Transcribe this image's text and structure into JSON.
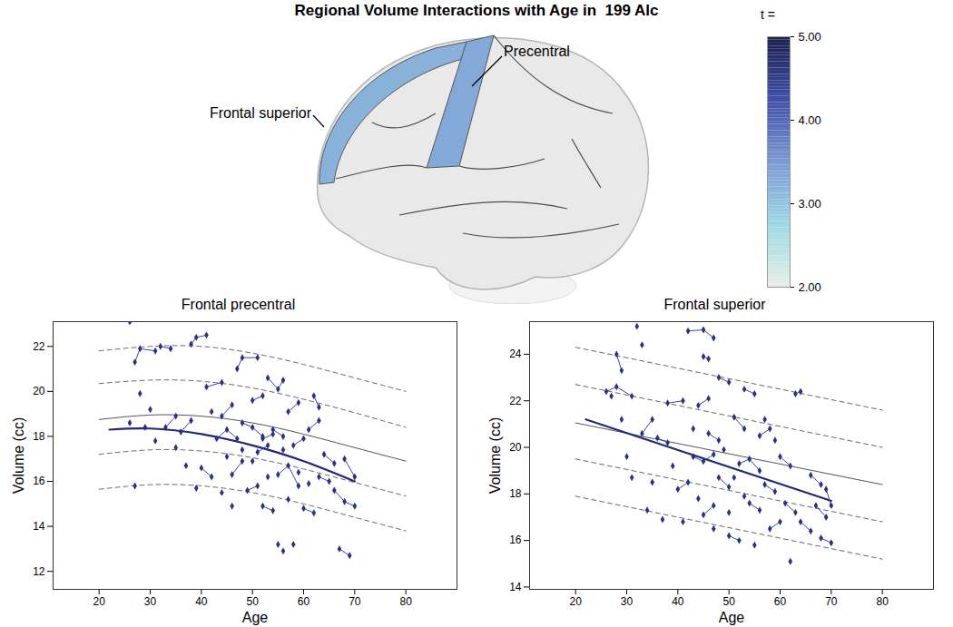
{
  "chart_data": [
    {
      "type": "brain_map",
      "title": "Regional Volume Interactions with Age in  199 Alc",
      "regions": [
        {
          "label": "Frontal superior",
          "t": 3.2
        },
        {
          "label": "Precentral",
          "t": 3.3
        }
      ],
      "colorbar": {
        "title": "t =",
        "range": [
          2,
          5
        ],
        "ticks": [
          {
            "value": 2,
            "label": "2.00"
          },
          {
            "value": 3,
            "label": "3.00"
          },
          {
            "value": 4,
            "label": "4.00"
          },
          {
            "value": 5,
            "label": "5.00"
          }
        ],
        "colors": [
          "#e6efe6",
          "#9ed8e4",
          "#7b98d4",
          "#3f4fa6",
          "#1b1f4e"
        ]
      }
    },
    {
      "type": "scatter",
      "title": "Frontal precentral",
      "x_label": "Age",
      "y_label": "Volume (cc)",
      "xlim": [
        11,
        90
      ],
      "xticks": [
        20,
        30,
        40,
        50,
        60,
        70,
        80
      ],
      "ylim": [
        11.2,
        23.1
      ],
      "yticks": [
        12,
        14,
        16,
        18,
        20,
        22
      ],
      "color": "#27308a",
      "marker": "diamond",
      "subjects": [
        [
          [
            26,
            23.1
          ]
        ],
        [
          [
            27,
            21.3
          ],
          [
            28,
            21.9
          ],
          [
            31,
            21.8
          ]
        ],
        [
          [
            32,
            22
          ],
          [
            34,
            21.9
          ]
        ],
        [
          [
            38,
            22.1
          ],
          [
            39,
            22.4
          ],
          [
            41,
            22.5
          ]
        ],
        [
          [
            26,
            18.6
          ]
        ],
        [
          [
            28,
            19.9
          ]
        ],
        [
          [
            29,
            18.4
          ]
        ],
        [
          [
            30,
            19.2
          ]
        ],
        [
          [
            31,
            17.8
          ]
        ],
        [
          [
            27,
            15.8
          ]
        ],
        [
          [
            33,
            18.4
          ],
          [
            35,
            18.9
          ]
        ],
        [
          [
            36,
            18.2
          ],
          [
            38,
            18.7
          ]
        ],
        [
          [
            37,
            16.7
          ]
        ],
        [
          [
            40,
            16.6
          ],
          [
            42,
            16.2
          ]
        ],
        [
          [
            41,
            20.2
          ],
          [
            44,
            20.4
          ]
        ],
        [
          [
            43,
            17.9
          ],
          [
            45,
            18.3
          ],
          [
            47,
            17.9
          ]
        ],
        [
          [
            44,
            18.9
          ],
          [
            46,
            19.4
          ]
        ],
        [
          [
            46,
            16.3
          ],
          [
            48,
            16.9
          ]
        ],
        [
          [
            47,
            21
          ],
          [
            48,
            21.5
          ],
          [
            51,
            21.5
          ]
        ],
        [
          [
            48,
            18.6
          ],
          [
            50,
            18.4
          ],
          [
            52,
            18
          ]
        ],
        [
          [
            49,
            15.6
          ],
          [
            51,
            15.8
          ]
        ],
        [
          [
            50,
            19.6
          ],
          [
            52,
            19.8
          ]
        ],
        [
          [
            51,
            17.3
          ],
          [
            53,
            17.6
          ]
        ],
        [
          [
            52,
            14.9
          ],
          [
            54,
            14.7
          ]
        ],
        [
          [
            53,
            20.6
          ],
          [
            55,
            20.1
          ],
          [
            56,
            20.5
          ]
        ],
        [
          [
            54,
            18.3
          ],
          [
            56,
            18
          ]
        ],
        [
          [
            55,
            16.3
          ],
          [
            57,
            16.7
          ],
          [
            59,
            15.8
          ]
        ],
        [
          [
            55,
            13.2
          ]
        ],
        [
          [
            56,
            12.9
          ]
        ],
        [
          [
            58,
            13.2
          ]
        ],
        [
          [
            57,
            19.1
          ],
          [
            59,
            19.5
          ]
        ],
        [
          [
            58,
            17.6
          ],
          [
            60,
            17.9
          ]
        ],
        [
          [
            60,
            14.8
          ],
          [
            62,
            14.6
          ]
        ],
        [
          [
            61,
            18.3
          ],
          [
            63,
            18.7
          ]
        ],
        [
          [
            62,
            19.8
          ],
          [
            63,
            19.3
          ]
        ],
        [
          [
            63,
            16.2
          ],
          [
            65,
            16
          ]
        ],
        [
          [
            64,
            17.2
          ],
          [
            66,
            16.8
          ]
        ],
        [
          [
            66,
            15.6
          ],
          [
            68,
            15.1
          ],
          [
            70,
            14.9
          ]
        ],
        [
          [
            67,
            13
          ],
          [
            69,
            12.7
          ]
        ],
        [
          [
            68,
            17
          ],
          [
            70,
            16.2
          ]
        ],
        [
          [
            45,
            17.1
          ]
        ],
        [
          [
            42,
            19.1
          ]
        ],
        [
          [
            35,
            17.5
          ]
        ],
        [
          [
            39,
            15.7
          ]
        ],
        [
          [
            50,
            16.9
          ]
        ],
        [
          [
            53,
            16.2
          ]
        ],
        [
          [
            57,
            15.2
          ]
        ],
        [
          [
            61,
            15.9
          ]
        ],
        [
          [
            46,
            14.9
          ]
        ],
        [
          [
            44,
            15.5
          ]
        ],
        [
          [
            52,
            17.9
          ],
          [
            54,
            18.1
          ]
        ],
        [
          [
            48,
            17.4
          ]
        ],
        [
          [
            56,
            17.4
          ]
        ],
        [
          [
            59,
            16.4
          ]
        ]
      ],
      "curves": [
        {
          "color": "#666666",
          "line_style": "dashed",
          "x": [
            20,
            30,
            40,
            50,
            60,
            70,
            80
          ],
          "values": [
            21.8,
            22.0,
            22.0,
            21.7,
            21.2,
            20.6,
            20.0
          ]
        },
        {
          "color": "#666666",
          "line_style": "dashed",
          "x": [
            20,
            30,
            40,
            50,
            60,
            70,
            80
          ],
          "values": [
            20.35,
            20.5,
            20.45,
            20.15,
            19.65,
            19.05,
            18.4
          ]
        },
        {
          "color": "#555555",
          "line_style": "solid",
          "x": [
            20,
            30,
            40,
            50,
            60,
            70,
            80
          ],
          "values": [
            18.75,
            18.95,
            18.9,
            18.6,
            18.1,
            17.5,
            16.9
          ]
        },
        {
          "color": "#666666",
          "line_style": "dashed",
          "x": [
            20,
            30,
            40,
            50,
            60,
            70,
            80
          ],
          "values": [
            17.2,
            17.4,
            17.35,
            17.05,
            16.55,
            15.95,
            15.35
          ]
        },
        {
          "color": "#666666",
          "line_style": "dashed",
          "x": [
            20,
            30,
            40,
            50,
            60,
            70,
            80
          ],
          "values": [
            15.65,
            15.85,
            15.8,
            15.5,
            15.0,
            14.4,
            13.8
          ]
        },
        {
          "color": "#1f2a7a",
          "line_style": "bold",
          "x": [
            22,
            30,
            40,
            50,
            60,
            70
          ],
          "values": [
            18.3,
            18.35,
            18.1,
            17.6,
            16.9,
            16.0
          ]
        }
      ]
    },
    {
      "type": "scatter",
      "title": "Frontal superior",
      "x_label": "Age",
      "y_label": "Volume (cc)",
      "xlim": [
        11,
        90
      ],
      "xticks": [
        20,
        30,
        40,
        50,
        60,
        70,
        80
      ],
      "ylim": [
        13.9,
        25.4
      ],
      "yticks": [
        14,
        16,
        18,
        20,
        22,
        24
      ],
      "color": "#27308a",
      "marker": "diamond",
      "subjects": [
        [
          [
            26,
            22.4
          ],
          [
            28,
            22.6
          ],
          [
            31,
            22.2
          ]
        ],
        [
          [
            28,
            24
          ],
          [
            29,
            23.3
          ]
        ],
        [
          [
            32,
            25.2
          ]
        ],
        [
          [
            33,
            24.4
          ]
        ],
        [
          [
            42,
            25
          ],
          [
            45,
            25.05
          ],
          [
            47,
            24.7
          ]
        ],
        [
          [
            45,
            23.9
          ],
          [
            46,
            23.8
          ]
        ],
        [
          [
            27,
            22.2
          ]
        ],
        [
          [
            29,
            21.2
          ]
        ],
        [
          [
            30,
            19.6
          ]
        ],
        [
          [
            31,
            18.7
          ]
        ],
        [
          [
            33,
            20.6
          ],
          [
            35,
            21.2
          ]
        ],
        [
          [
            34,
            17.3
          ]
        ],
        [
          [
            36,
            20.4
          ],
          [
            38,
            20.2
          ]
        ],
        [
          [
            38,
            21.9
          ],
          [
            41,
            22
          ]
        ],
        [
          [
            40,
            18.2
          ],
          [
            42,
            18.5
          ]
        ],
        [
          [
            41,
            16.8
          ]
        ],
        [
          [
            43,
            19.6
          ],
          [
            45,
            19.4
          ],
          [
            47,
            19.7
          ]
        ],
        [
          [
            44,
            21.8
          ],
          [
            46,
            22.1
          ]
        ],
        [
          [
            45,
            17.1
          ],
          [
            47,
            17.5
          ]
        ],
        [
          [
            46,
            20.6
          ],
          [
            48,
            20.3
          ]
        ],
        [
          [
            48,
            23
          ],
          [
            50,
            22.8
          ]
        ],
        [
          [
            48,
            18.7
          ],
          [
            50,
            18.3
          ]
        ],
        [
          [
            50,
            16.2
          ],
          [
            52,
            16
          ]
        ],
        [
          [
            51,
            21.3
          ],
          [
            53,
            20.8
          ]
        ],
        [
          [
            52,
            19.3
          ],
          [
            54,
            19.5
          ],
          [
            56,
            19
          ]
        ],
        [
          [
            53,
            22.5
          ],
          [
            55,
            22.3
          ]
        ],
        [
          [
            54,
            17.6
          ],
          [
            56,
            17.3
          ]
        ],
        [
          [
            55,
            15.8
          ]
        ],
        [
          [
            56,
            20.5
          ],
          [
            58,
            20.8
          ]
        ],
        [
          [
            57,
            18.4
          ],
          [
            59,
            18.1
          ]
        ],
        [
          [
            58,
            16.5
          ],
          [
            60,
            16.8
          ]
        ],
        [
          [
            60,
            19.6
          ],
          [
            62,
            19.2
          ]
        ],
        [
          [
            61,
            17.6
          ],
          [
            63,
            17.2
          ]
        ],
        [
          [
            63,
            22.3
          ],
          [
            64,
            22.4
          ]
        ],
        [
          [
            62,
            15.1
          ]
        ],
        [
          [
            64,
            16.8
          ],
          [
            66,
            16.4
          ]
        ],
        [
          [
            66,
            18.8
          ],
          [
            68,
            18.4
          ]
        ],
        [
          [
            67,
            17.5
          ],
          [
            69,
            17
          ]
        ],
        [
          [
            68,
            16.1
          ],
          [
            70,
            15.9
          ]
        ],
        [
          [
            69,
            18.2
          ],
          [
            70,
            17.5
          ]
        ],
        [
          [
            39,
            19.2
          ]
        ],
        [
          [
            44,
            17.8
          ]
        ],
        [
          [
            49,
            19.9
          ]
        ],
        [
          [
            51,
            18.7
          ]
        ],
        [
          [
            53,
            17.9
          ]
        ],
        [
          [
            57,
            21.2
          ]
        ],
        [
          [
            59,
            20.3
          ]
        ],
        [
          [
            35,
            18.5
          ]
        ],
        [
          [
            37,
            16.9
          ]
        ],
        [
          [
            43,
            20.8
          ]
        ],
        [
          [
            47,
            16.5
          ]
        ],
        [
          [
            50,
            17.2
          ]
        ]
      ],
      "curves": [
        {
          "color": "#666666",
          "line_style": "dashed",
          "x": [
            20,
            80
          ],
          "values": [
            24.3,
            21.6
          ]
        },
        {
          "color": "#666666",
          "line_style": "dashed",
          "x": [
            20,
            80
          ],
          "values": [
            22.7,
            20.0
          ]
        },
        {
          "color": "#555555",
          "line_style": "solid",
          "x": [
            20,
            80
          ],
          "values": [
            21.05,
            18.4
          ]
        },
        {
          "color": "#666666",
          "line_style": "dashed",
          "x": [
            20,
            80
          ],
          "values": [
            19.5,
            16.8
          ]
        },
        {
          "color": "#666666",
          "line_style": "dashed",
          "x": [
            20,
            80
          ],
          "values": [
            17.9,
            15.2
          ]
        },
        {
          "color": "#1f2a7a",
          "line_style": "bold",
          "x": [
            22,
            70
          ],
          "values": [
            21.2,
            17.7
          ]
        }
      ]
    }
  ]
}
